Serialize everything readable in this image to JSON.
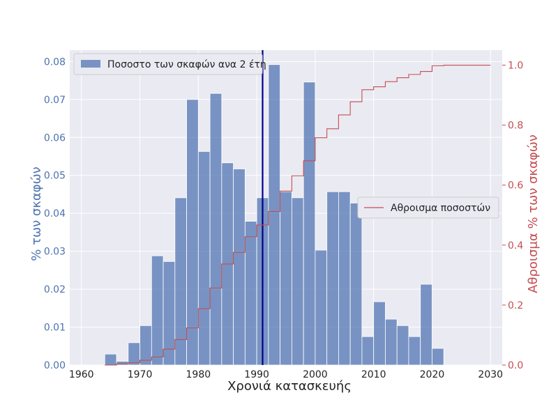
{
  "chart_data": {
    "type": "bar",
    "xlabel": "Χρονιά κατασκευής",
    "ylabel_left": "% των σκαφών",
    "ylabel_right": "Αθροισμα  % των σκαφών",
    "xlim": [
      1958,
      2032
    ],
    "ylim_left": [
      0,
      0.083
    ],
    "ylim_right": [
      0,
      1.05
    ],
    "xticks": [
      1960,
      1970,
      1980,
      1990,
      2000,
      2010,
      2020,
      2030
    ],
    "yticks_left": [
      0.0,
      0.01,
      0.02,
      0.03,
      0.04,
      0.05,
      0.06,
      0.07,
      0.08
    ],
    "ytick_labels_left": [
      "0.00",
      "0.01",
      "0.02",
      "0.03",
      "0.04",
      "0.05",
      "0.06",
      "0.07",
      "0.08"
    ],
    "yticks_right": [
      0.0,
      0.2,
      0.4,
      0.6,
      0.8,
      1.0
    ],
    "ytick_labels_right": [
      "0.0",
      "0.2",
      "0.4",
      "0.6",
      "0.8",
      "1.0"
    ],
    "grid": true,
    "vline_x": 1991,
    "bar_color": "#4c72b0",
    "line_color": "#c44e52",
    "vline_color": "#00008b",
    "bins": [
      {
        "start": 1964,
        "end": 1966,
        "value": 0.0029
      },
      {
        "start": 1966,
        "end": 1968,
        "value": 0.001
      },
      {
        "start": 1968,
        "end": 1970,
        "value": 0.0059
      },
      {
        "start": 1970,
        "end": 1972,
        "value": 0.0104
      },
      {
        "start": 1972,
        "end": 1974,
        "value": 0.0288
      },
      {
        "start": 1974,
        "end": 1976,
        "value": 0.0273
      },
      {
        "start": 1976,
        "end": 1978,
        "value": 0.0441
      },
      {
        "start": 1978,
        "end": 1980,
        "value": 0.07
      },
      {
        "start": 1980,
        "end": 1982,
        "value": 0.0563
      },
      {
        "start": 1982,
        "end": 1984,
        "value": 0.0716
      },
      {
        "start": 1984,
        "end": 1986,
        "value": 0.0533
      },
      {
        "start": 1986,
        "end": 1988,
        "value": 0.0517
      },
      {
        "start": 1988,
        "end": 1990,
        "value": 0.0379
      },
      {
        "start": 1990,
        "end": 1992,
        "value": 0.0441
      },
      {
        "start": 1992,
        "end": 1994,
        "value": 0.0792
      },
      {
        "start": 1994,
        "end": 1996,
        "value": 0.0457
      },
      {
        "start": 1996,
        "end": 1998,
        "value": 0.0441
      },
      {
        "start": 1998,
        "end": 2000,
        "value": 0.0746
      },
      {
        "start": 2000,
        "end": 2002,
        "value": 0.0303
      },
      {
        "start": 2002,
        "end": 2004,
        "value": 0.0457
      },
      {
        "start": 2004,
        "end": 2006,
        "value": 0.0457
      },
      {
        "start": 2006,
        "end": 2008,
        "value": 0.0427
      },
      {
        "start": 2008,
        "end": 2010,
        "value": 0.0075
      },
      {
        "start": 2010,
        "end": 2012,
        "value": 0.0167
      },
      {
        "start": 2012,
        "end": 2014,
        "value": 0.0121
      },
      {
        "start": 2014,
        "end": 2016,
        "value": 0.0104
      },
      {
        "start": 2016,
        "end": 2018,
        "value": 0.0075
      },
      {
        "start": 2018,
        "end": 2020,
        "value": 0.0213
      },
      {
        "start": 2020,
        "end": 2022,
        "value": 0.0044
      }
    ],
    "series": [
      {
        "type": "bar",
        "name": "Ποσοστο των σκαφών ανα 2 έτη",
        "axis": "left"
      },
      {
        "type": "step",
        "name": "Αθροισμα ποσοστών",
        "axis": "right",
        "x": [
          1964,
          1966,
          1968,
          1970,
          1972,
          1974,
          1976,
          1978,
          1980,
          1982,
          1984,
          1986,
          1988,
          1990,
          1992,
          1994,
          1996,
          1998,
          2000,
          2002,
          2004,
          2006,
          2008,
          2010,
          2012,
          2014,
          2016,
          2018,
          2020,
          2022,
          2030
        ],
        "y": [
          0.0,
          0.004,
          0.008,
          0.016,
          0.027,
          0.053,
          0.085,
          0.124,
          0.188,
          0.257,
          0.337,
          0.376,
          0.428,
          0.467,
          0.512,
          0.58,
          0.631,
          0.681,
          0.758,
          0.788,
          0.834,
          0.878,
          0.918,
          0.928,
          0.945,
          0.958,
          0.969,
          0.979,
          0.998,
          1.0,
          1.0
        ]
      }
    ],
    "legend_left": {
      "placement": "top-left",
      "label": "Ποσοστο των σκαφών ανα 2 έτη"
    },
    "legend_right": {
      "placement": "center-right",
      "label": "Αθροισμα ποσοστών"
    }
  }
}
